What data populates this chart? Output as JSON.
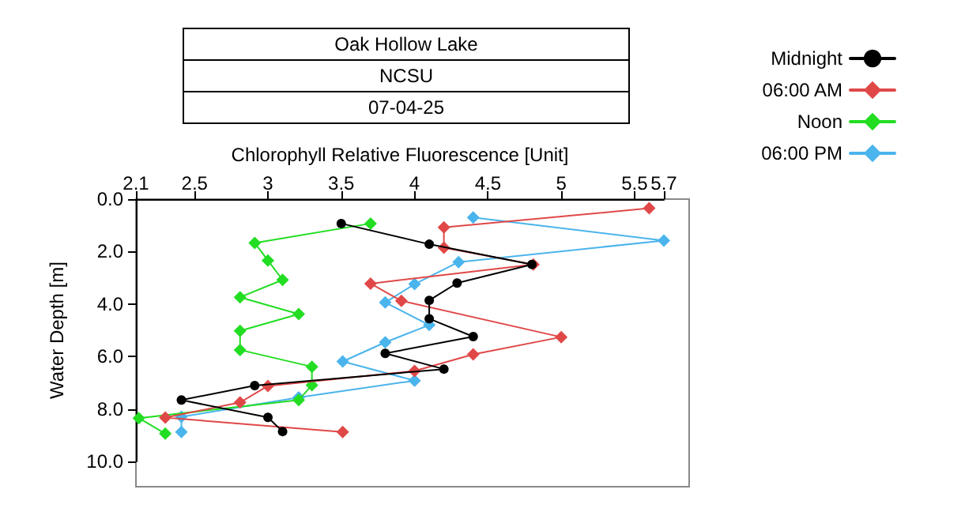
{
  "chart_data": {
    "type": "line",
    "title": "Oak Hollow Lake",
    "subtitle": "NCSU",
    "annotations": [
      "07-04-25"
    ],
    "xlabel": "Chlorophyll Relative Fluorescence [Unit]",
    "ylabel": "Water Depth [m]",
    "xlim": [
      2.1,
      5.7
    ],
    "xticks": [
      2.1,
      2.5,
      3,
      3.5,
      4,
      4.5,
      5,
      5.5,
      5.7
    ],
    "ylim": [
      10,
      0
    ],
    "yticks": [
      {
        "value": 0,
        "label": "0.0"
      },
      {
        "value": 2,
        "label": "2.0"
      },
      {
        "value": 4,
        "label": "4.0"
      },
      {
        "value": 6,
        "label": "6.0"
      },
      {
        "value": 8,
        "label": "8.0"
      },
      {
        "value": 10,
        "label": "10.0"
      }
    ],
    "grid": false,
    "legend": "top right",
    "line_style": "solid",
    "series": [
      {
        "name": "Midnight",
        "color": "#000000",
        "marker": "circle",
        "x": [
          3.5,
          4.1,
          4.8,
          4.29,
          4.1,
          4.1,
          4.4,
          3.8,
          4.2,
          2.91,
          2.41,
          3.0,
          3.1
        ],
        "values": [
          0.93,
          1.72,
          2.49,
          3.2,
          3.86,
          4.56,
          5.24,
          5.88,
          6.48,
          7.11,
          7.66,
          8.32,
          8.86
        ]
      },
      {
        "name": "06:00 AM",
        "color": "#e04848",
        "marker": "diamond",
        "x": [
          5.6,
          4.2,
          4.2,
          4.81,
          3.7,
          3.91,
          5.0,
          4.4,
          4.0,
          3.0,
          2.81,
          2.3,
          3.51
        ],
        "values": [
          0.35,
          1.08,
          1.85,
          2.49,
          3.22,
          3.88,
          5.26,
          5.92,
          6.55,
          7.12,
          7.75,
          8.33,
          8.88
        ]
      },
      {
        "name": "Noon",
        "color": "#22dd22",
        "marker": "diamond",
        "x": [
          3.7,
          2.91,
          3.0,
          3.1,
          2.81,
          3.21,
          2.81,
          2.81,
          3.3,
          3.3,
          3.21,
          2.12,
          2.3
        ],
        "values": [
          0.93,
          1.67,
          2.34,
          3.08,
          3.74,
          4.38,
          5.02,
          5.75,
          6.39,
          7.09,
          7.66,
          8.35,
          8.94
        ]
      },
      {
        "name": "06:00 PM",
        "color": "#4ab4ec",
        "marker": "diamond",
        "x": [
          4.4,
          5.7,
          4.3,
          4.0,
          3.8,
          4.1,
          3.8,
          3.51,
          4.0,
          3.21,
          2.41,
          2.41
        ],
        "values": [
          0.7,
          1.58,
          2.4,
          3.24,
          3.94,
          4.8,
          5.46,
          6.19,
          6.92,
          7.56,
          8.3,
          8.88
        ]
      }
    ]
  }
}
